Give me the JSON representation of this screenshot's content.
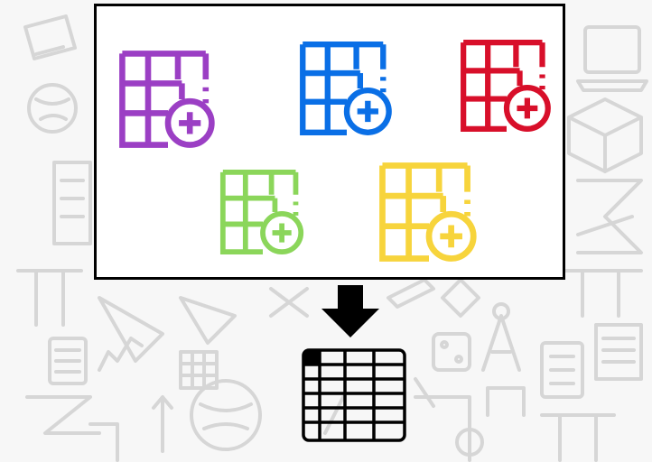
{
  "diagram": {
    "icons": [
      {
        "name": "table-add-icon-purple",
        "color": "#9b3fc4"
      },
      {
        "name": "table-add-icon-blue",
        "color": "#0a6fe6"
      },
      {
        "name": "table-add-icon-red",
        "color": "#d80f2a"
      },
      {
        "name": "table-add-icon-green",
        "color": "#8bd65a"
      },
      {
        "name": "table-add-icon-yellow",
        "color": "#f7d43c"
      }
    ],
    "arrow": {
      "name": "arrow-down-icon",
      "color": "#000000"
    },
    "result": {
      "name": "merged-table-icon",
      "color": "#000000"
    },
    "background": {
      "name": "education-doodle-pattern",
      "color": "#d6d6d6"
    }
  }
}
